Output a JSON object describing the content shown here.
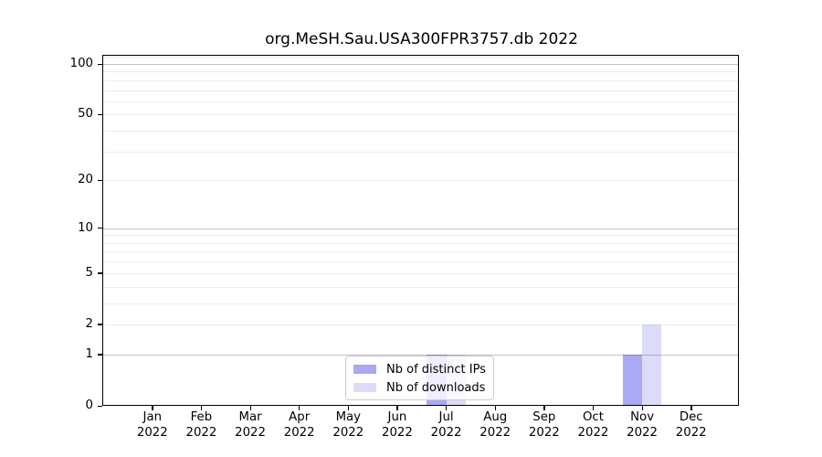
{
  "chart_data": {
    "type": "bar",
    "title": "org.MeSH.Sau.USA300FPR3757.db 2022",
    "categories": [
      "Jan",
      "Feb",
      "Mar",
      "Apr",
      "May",
      "Jun",
      "Jul",
      "Aug",
      "Sep",
      "Oct",
      "Nov",
      "Dec"
    ],
    "category_sublabel": "2022",
    "series": [
      {
        "name": "Nb of distinct IPs",
        "color": "#a9a9f5",
        "values": [
          0,
          0,
          0,
          0,
          0,
          0,
          1,
          0,
          0,
          0,
          1,
          0
        ]
      },
      {
        "name": "Nb of downloads",
        "color": "#dcdcf8",
        "values": [
          0,
          0,
          0,
          0,
          0,
          0,
          1,
          0,
          0,
          0,
          2,
          0
        ]
      }
    ],
    "yscale": "log1p",
    "ylim": [
      0,
      112
    ],
    "yticks": [
      0,
      1,
      2,
      5,
      10,
      20,
      50,
      100
    ],
    "major_gridlines": [
      1,
      10,
      100
    ],
    "minor_gridlines": [
      2,
      3,
      4,
      5,
      6,
      7,
      8,
      9,
      20,
      30,
      40,
      50,
      60,
      70,
      80,
      90,
      110
    ],
    "grid": true,
    "legend": {
      "position": "lower center"
    }
  }
}
